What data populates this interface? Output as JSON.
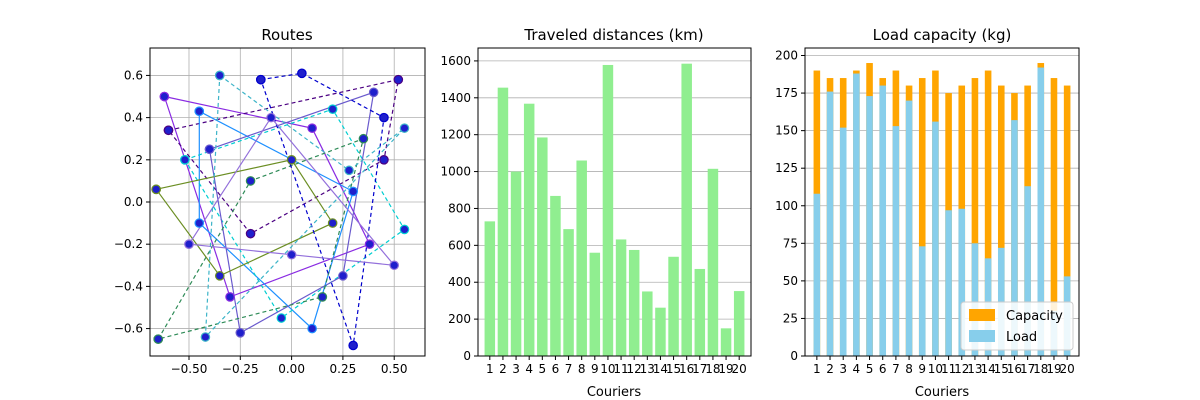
{
  "figure": {
    "titles": [
      "Routes",
      "Traveled distances (km)",
      "Load capacity (kg)"
    ]
  },
  "chart_data": [
    {
      "type": "scatter",
      "title": "Routes",
      "xlabel": "",
      "ylabel": "",
      "xlim": [
        -0.69,
        0.65
      ],
      "ylim": [
        -0.73,
        0.73
      ],
      "xticks": [
        -0.5,
        -0.25,
        0.0,
        0.25,
        0.5
      ],
      "xtick_labels": [
        "−0.50",
        "−0.25",
        "0.00",
        "0.25",
        "0.50"
      ],
      "yticks": [
        -0.6,
        -0.4,
        -0.2,
        0.0,
        0.2,
        0.4,
        0.6
      ],
      "ytick_labels": [
        "−0.6",
        "−0.4",
        "−0.2",
        "0.0",
        "0.2",
        "0.4",
        "0.6"
      ],
      "grid": true,
      "route_colors": [
        "#8a2be2",
        "#4b0082",
        "#1e90ff",
        "#00ced1",
        "#6a5acd",
        "#2e8b57",
        "#6b8e23",
        "#0000cd",
        "#9370db",
        "#3cb4c8"
      ],
      "marker_color": "#1f1fcc",
      "routes": [
        {
          "dashed": false,
          "points": [
            [
              -0.62,
              0.5
            ],
            [
              0.1,
              0.35
            ],
            [
              0.38,
              -0.2
            ],
            [
              -0.3,
              -0.45
            ],
            [
              -0.62,
              0.5
            ]
          ]
        },
        {
          "dashed": true,
          "points": [
            [
              -0.6,
              0.34
            ],
            [
              0.52,
              0.58
            ],
            [
              0.45,
              0.2
            ],
            [
              -0.2,
              -0.15
            ],
            [
              -0.6,
              0.34
            ]
          ]
        },
        {
          "dashed": false,
          "points": [
            [
              -0.45,
              0.43
            ],
            [
              0.3,
              0.05
            ],
            [
              0.1,
              -0.6
            ],
            [
              -0.45,
              -0.1
            ],
            [
              -0.45,
              0.43
            ]
          ]
        },
        {
          "dashed": true,
          "points": [
            [
              -0.52,
              0.2
            ],
            [
              0.2,
              0.44
            ],
            [
              0.55,
              -0.13
            ],
            [
              -0.05,
              -0.55
            ],
            [
              -0.52,
              0.2
            ]
          ]
        },
        {
          "dashed": false,
          "points": [
            [
              -0.4,
              0.25
            ],
            [
              0.4,
              0.52
            ],
            [
              0.25,
              -0.35
            ],
            [
              -0.25,
              -0.62
            ],
            [
              -0.4,
              0.25
            ]
          ]
        },
        {
          "dashed": true,
          "points": [
            [
              -0.65,
              -0.65
            ],
            [
              -0.2,
              0.1
            ],
            [
              0.35,
              0.3
            ],
            [
              0.15,
              -0.45
            ],
            [
              -0.65,
              -0.65
            ]
          ]
        },
        {
          "dashed": false,
          "points": [
            [
              -0.66,
              0.06
            ],
            [
              0.0,
              0.2
            ],
            [
              0.2,
              -0.1
            ],
            [
              -0.35,
              -0.35
            ],
            [
              -0.66,
              0.06
            ]
          ]
        },
        {
          "dashed": true,
          "points": [
            [
              -0.15,
              0.58
            ],
            [
              0.05,
              0.61
            ],
            [
              0.45,
              0.4
            ],
            [
              0.3,
              -0.68
            ],
            [
              -0.15,
              0.58
            ]
          ]
        },
        {
          "dashed": false,
          "points": [
            [
              -0.5,
              -0.2
            ],
            [
              -0.1,
              0.4
            ],
            [
              0.5,
              -0.3
            ],
            [
              0.0,
              -0.25
            ],
            [
              -0.5,
              -0.2
            ]
          ]
        },
        {
          "dashed": true,
          "points": [
            [
              -0.35,
              0.6
            ],
            [
              0.28,
              0.15
            ],
            [
              0.55,
              0.35
            ],
            [
              -0.42,
              -0.64
            ],
            [
              -0.35,
              0.6
            ]
          ]
        }
      ]
    },
    {
      "type": "bar",
      "title": "Traveled distances (km)",
      "xlabel": "Couriers",
      "ylabel": "",
      "categories": [
        "1",
        "2",
        "3",
        "4",
        "5",
        "6",
        "7",
        "8",
        "9",
        "10",
        "11",
        "12",
        "13",
        "14",
        "15",
        "16",
        "17",
        "18",
        "19",
        "20"
      ],
      "values": [
        730,
        1455,
        1000,
        1368,
        1185,
        868,
        688,
        1060,
        560,
        1578,
        632,
        575,
        350,
        262,
        538,
        1585,
        472,
        1015,
        150,
        352
      ],
      "ylim": [
        0,
        1670
      ],
      "yticks": [
        0,
        200,
        400,
        600,
        800,
        1000,
        1200,
        1400,
        1600
      ],
      "bar_color": "#90ee90",
      "grid": "y"
    },
    {
      "type": "bar",
      "title": "Load capacity (kg)",
      "xlabel": "Couriers",
      "ylabel": "",
      "categories": [
        "1",
        "2",
        "3",
        "4",
        "5",
        "6",
        "7",
        "8",
        "9",
        "10",
        "11",
        "12",
        "13",
        "14",
        "15",
        "16",
        "17",
        "18",
        "19",
        "20"
      ],
      "series": [
        {
          "name": "Capacity",
          "color": "#ffa500",
          "values": [
            190,
            185,
            185,
            190,
            195,
            185,
            190,
            180,
            185,
            190,
            175,
            180,
            185,
            190,
            180,
            175,
            180,
            195,
            185,
            180
          ]
        },
        {
          "name": "Load",
          "color": "#87ceeb",
          "values": [
            108,
            176,
            152,
            188,
            173,
            180,
            153,
            170,
            73,
            156,
            97,
            98,
            75,
            65,
            72,
            157,
            113,
            192,
            30,
            53
          ]
        }
      ],
      "ylim": [
        0,
        205
      ],
      "yticks": [
        0,
        25,
        50,
        75,
        100,
        125,
        150,
        175,
        200
      ],
      "grid": "y",
      "legend_position": "lower-right"
    }
  ]
}
